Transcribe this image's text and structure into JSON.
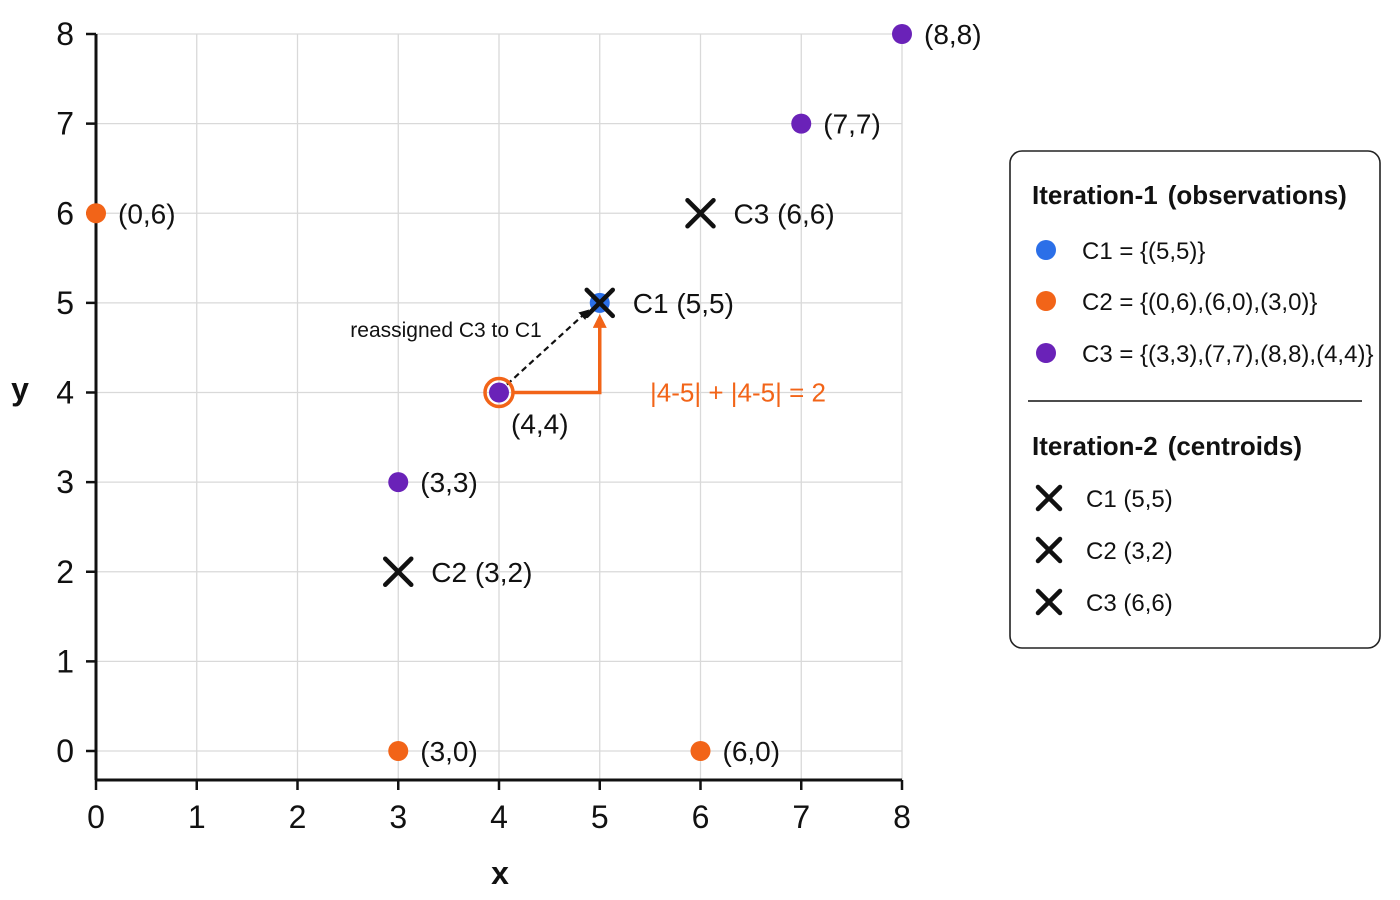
{
  "chart_data": {
    "type": "scatter",
    "xlabel": "x",
    "ylabel": "y",
    "xlim": [
      0,
      8
    ],
    "ylim": [
      0,
      8
    ],
    "xticks": [
      "0",
      "1",
      "2",
      "3",
      "4",
      "5",
      "6",
      "7",
      "8"
    ],
    "yticks": [
      "0",
      "1",
      "2",
      "3",
      "4",
      "5",
      "6",
      "7",
      "8"
    ],
    "grid": true,
    "legend_position": "right",
    "colors": {
      "C1": "#2b6fe8",
      "C2": "#f26418",
      "C3": "#6a22b8",
      "centroid": "#111111",
      "highlight": "#f26418"
    },
    "points": [
      {
        "x": 0,
        "y": 6,
        "cluster": "C2",
        "label": "(0,6)"
      },
      {
        "x": 3,
        "y": 0,
        "cluster": "C2",
        "label": "(3,0)"
      },
      {
        "x": 6,
        "y": 0,
        "cluster": "C2",
        "label": "(6,0)"
      },
      {
        "x": 3,
        "y": 3,
        "cluster": "C3",
        "label": "(3,3)"
      },
      {
        "x": 4,
        "y": 4,
        "cluster": "C3",
        "label": "(4,4)",
        "highlighted": true
      },
      {
        "x": 7,
        "y": 7,
        "cluster": "C3",
        "label": "(7,7)"
      },
      {
        "x": 8,
        "y": 8,
        "cluster": "C3",
        "label": "(8,8)"
      },
      {
        "x": 5,
        "y": 5,
        "cluster": "C1",
        "label": ""
      }
    ],
    "centroids": [
      {
        "name": "C1",
        "x": 5,
        "y": 5,
        "label": "C1 (5,5)"
      },
      {
        "name": "C2",
        "x": 3,
        "y": 2,
        "label": "C2 (3,2)"
      },
      {
        "name": "C3",
        "x": 6,
        "y": 6,
        "label": "C3 (6,6)"
      }
    ],
    "annotations": {
      "reassign_text": "reassigned C3 to C1",
      "reassign_from": [
        4,
        4
      ],
      "reassign_to": [
        5,
        5
      ],
      "distance_text": "|4-5| + |4-5| = 2",
      "distance_corner": [
        5,
        4
      ]
    },
    "legend": {
      "section1_title_bold": "Iteration-1",
      "section1_title_rest": "(observations)",
      "observations": [
        {
          "cluster": "C1",
          "text": "C1 = {(5,5)}"
        },
        {
          "cluster": "C2",
          "text": "C2 = {(0,6),(6,0),(3,0)}"
        },
        {
          "cluster": "C3",
          "text": "C3 = {(3,3),(7,7),(8,8),(4,4)}"
        }
      ],
      "section2_title_bold": "Iteration-2",
      "section2_title_rest": "(centroids)",
      "centroids": [
        {
          "text": "C1 (5,5)"
        },
        {
          "text": "C2 (3,2)"
        },
        {
          "text": "C3 (6,6)"
        }
      ]
    }
  }
}
